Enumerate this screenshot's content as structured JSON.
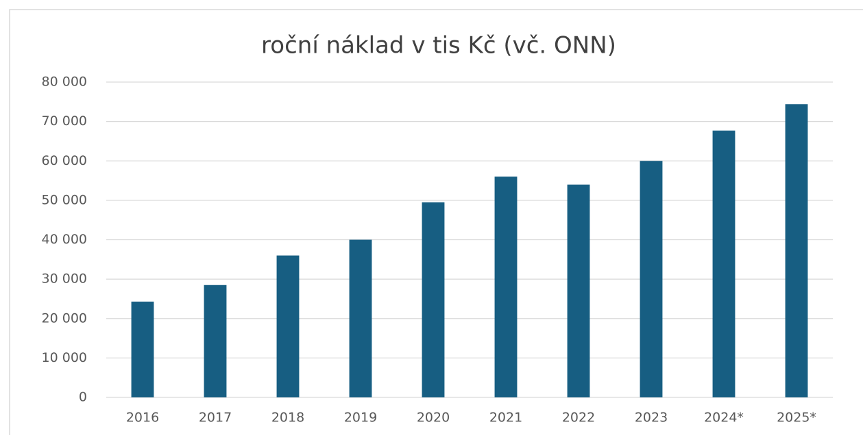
{
  "chart_data": {
    "type": "bar",
    "title": "roční náklad v tis Kč (vč. ONN)",
    "categories": [
      "2016",
      "2017",
      "2018",
      "2019",
      "2020",
      "2021",
      "2022",
      "2023",
      "2024*",
      "2025*"
    ],
    "values": [
      24300,
      28500,
      36000,
      40000,
      49500,
      56000,
      54000,
      60000,
      67700,
      74400
    ],
    "color": "#175e82",
    "ylim": [
      0,
      80000
    ],
    "yticks": [
      0,
      {
        "value": 10000,
        "label": "10 000"
      },
      {
        "value": 20000,
        "label": "20 000"
      },
      {
        "value": 30000,
        "label": "30 000"
      },
      {
        "value": 40000,
        "label": "40 000"
      },
      {
        "value": 50000,
        "label": "50 000"
      },
      {
        "value": 60000,
        "label": "60 000"
      },
      {
        "value": 70000,
        "label": "70 000"
      },
      {
        "value": 80000,
        "label": "80 000"
      }
    ],
    "grid": true
  }
}
